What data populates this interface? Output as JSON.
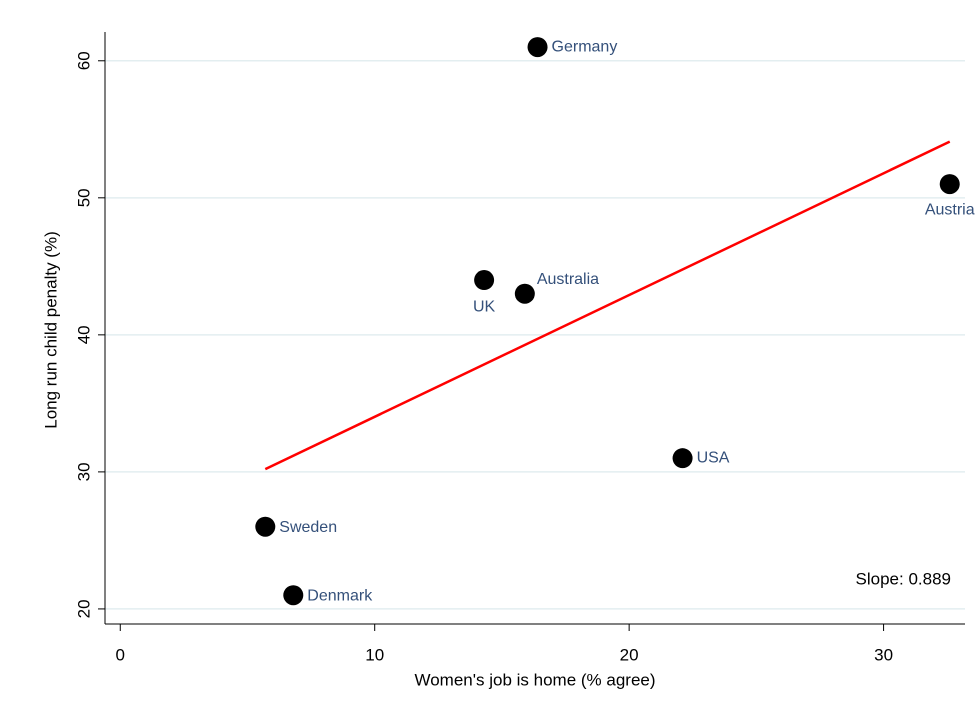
{
  "chart_data": {
    "type": "scatter",
    "x_label": "Women's job is home (% agree)",
    "y_label": "Long run child penalty (%)",
    "x": [
      16.4,
      32.6,
      14.3,
      15.9,
      22.1,
      5.7,
      6.8
    ],
    "y": [
      61,
      51,
      44,
      43,
      31,
      26,
      21
    ],
    "point_labels": [
      "Germany",
      "Austria",
      "UK",
      "Australia",
      "USA",
      "Sweden",
      "Denmark"
    ],
    "color": "#000000",
    "fit": {
      "x": [
        5.7,
        32.6
      ],
      "y": [
        30.2,
        54.1
      ],
      "color": "#ff0000"
    },
    "annotation": "Slope: 0.889",
    "xlim": [
      -0.6,
      33.2
    ],
    "ylim": [
      18.9,
      62.1
    ],
    "xticks": [
      0,
      10,
      20,
      30
    ],
    "yticks": [
      20,
      30,
      40,
      50,
      60
    ],
    "grid": true
  }
}
